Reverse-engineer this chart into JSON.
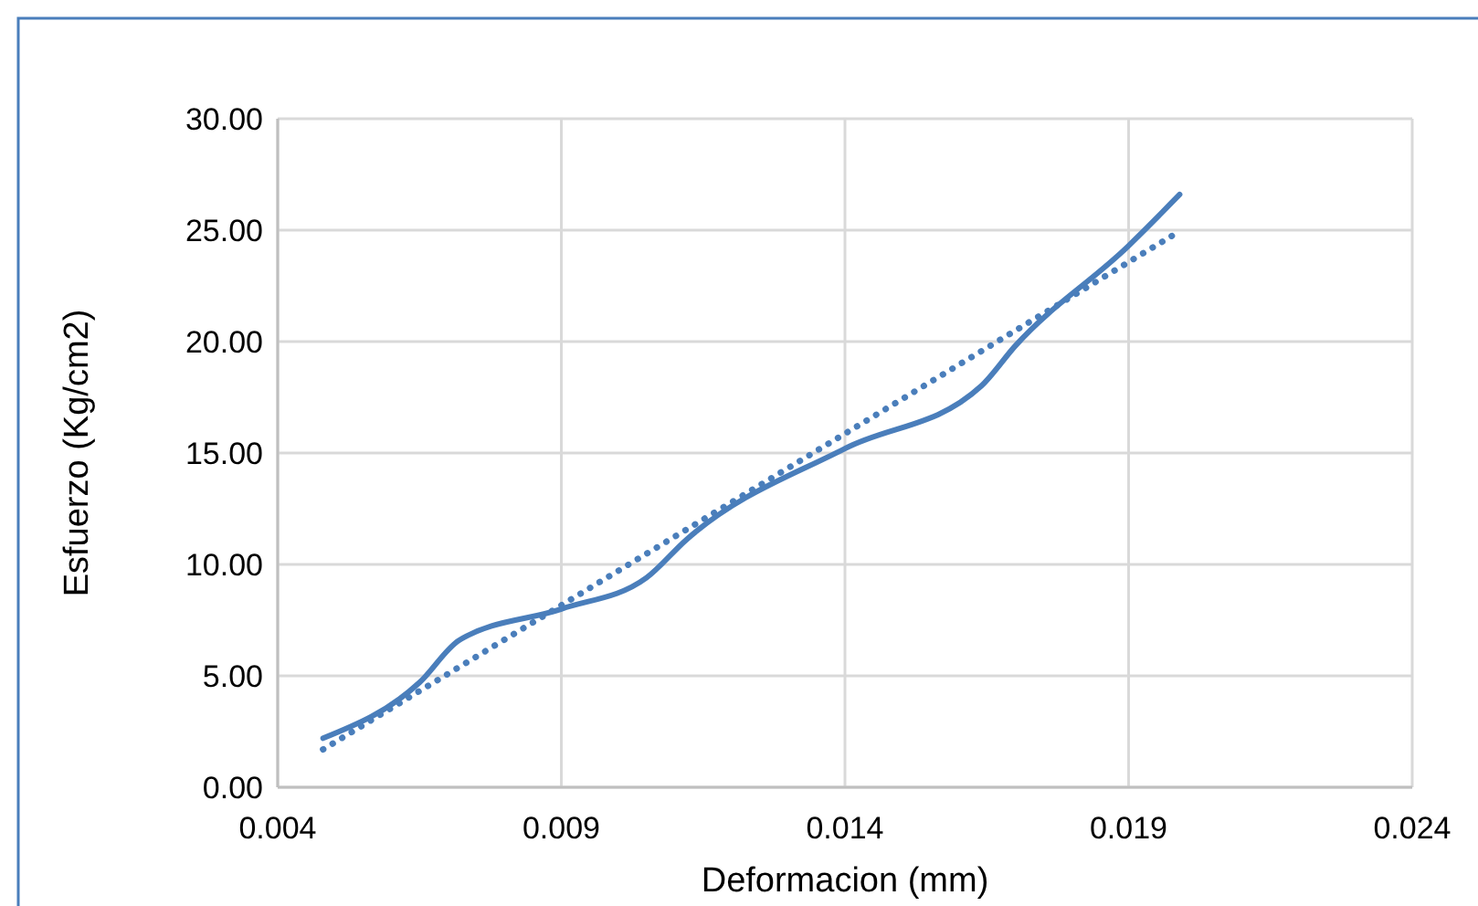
{
  "chart_data": {
    "type": "line",
    "xlabel": "Deformacion (mm)",
    "ylabel": "Esfuerzo (Kg/cm2)",
    "xlim": [
      0.004,
      0.024
    ],
    "xticks": [
      0.004,
      0.009,
      0.014,
      0.019,
      0.024
    ],
    "ylim": [
      0,
      30
    ],
    "yticks": [
      {
        "value": 0,
        "label": "0.00"
      },
      {
        "value": 5,
        "label": "5.00"
      },
      {
        "value": 10,
        "label": "10.00"
      },
      {
        "value": 15,
        "label": "15.00"
      },
      {
        "value": 20,
        "label": "20.00"
      },
      {
        "value": 25,
        "label": "25.00"
      },
      {
        "value": 30,
        "label": "30.00"
      }
    ],
    "grid": true,
    "marker": "none",
    "series": [
      {
        "color": "#4a7ebb",
        "line_style": "solid",
        "x": [
          0.0048,
          0.0065,
          0.0072,
          0.009,
          0.0105,
          0.0112,
          0.014,
          0.0164,
          0.017,
          0.019,
          0.0199
        ],
        "values": [
          2.2,
          4.7,
          6.6,
          8.0,
          9.4,
          11.1,
          15.2,
          18.0,
          19.8,
          24.3,
          26.6
        ]
      },
      {
        "color": "#4a7ebb",
        "line_style": "dotted",
        "x": [
          0.0048,
          0.0198
        ],
        "values": [
          1.7,
          24.8
        ]
      }
    ]
  }
}
